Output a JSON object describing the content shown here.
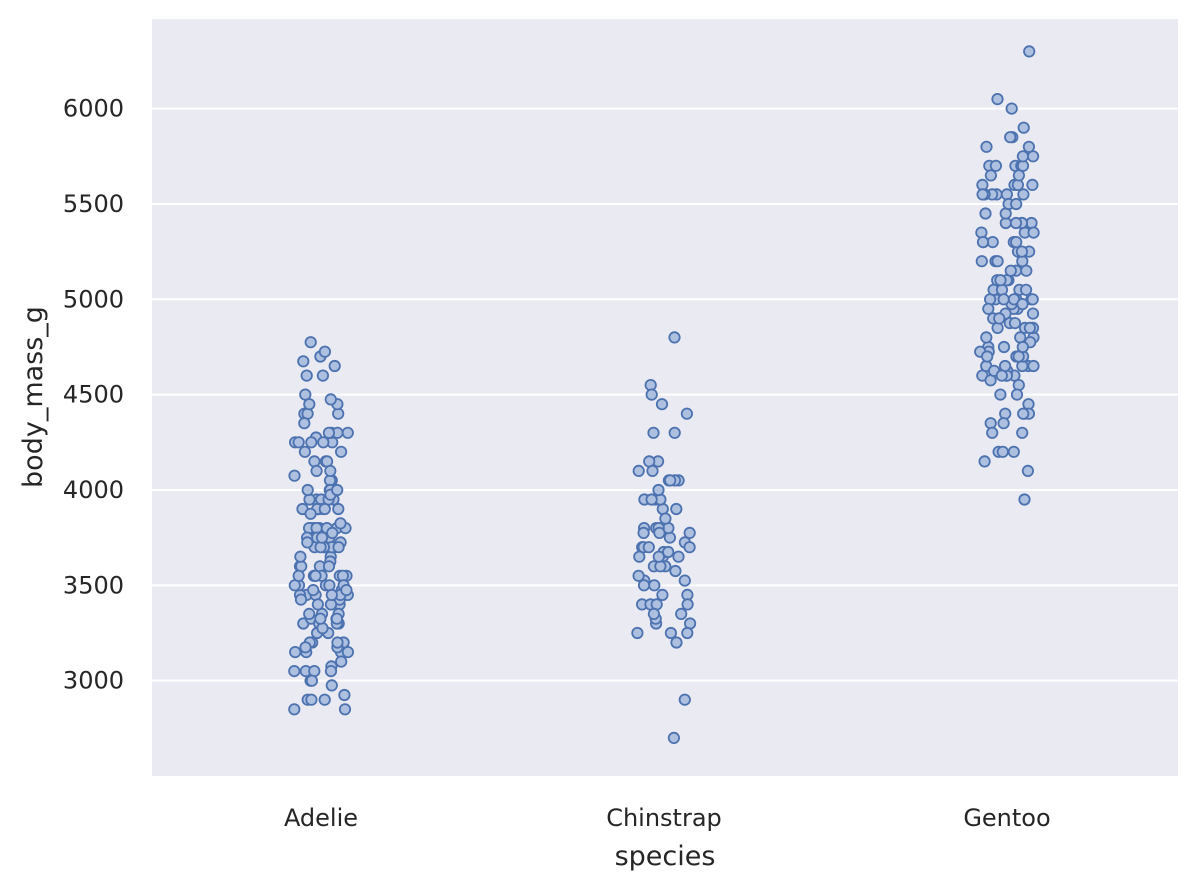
{
  "chart_data": {
    "type": "scatter",
    "title": "",
    "xlabel": "species",
    "ylabel": "body_mass_g",
    "categories": [
      "Adelie",
      "Chinstrap",
      "Gentoo"
    ],
    "yticks": [
      3000,
      3500,
      4000,
      4500,
      5000,
      5500,
      6000
    ],
    "ytick_labels": [
      "3000",
      "3500",
      "4000",
      "4500",
      "5000",
      "5500",
      "6000"
    ],
    "ylim": [
      2500,
      6470
    ],
    "grid": true,
    "legend": "none",
    "colors": {
      "background": "#eaeaf2",
      "grid": "#ffffff",
      "marker_edge": "#4c72b0",
      "marker_fill": "#aec0e0"
    },
    "series": [
      {
        "category": "Adelie",
        "values": [
          3750,
          3800,
          3250,
          3450,
          3650,
          3625,
          4675,
          3475,
          4250,
          3300,
          3700,
          3200,
          3800,
          4400,
          3700,
          3450,
          4500,
          3325,
          4200,
          3400,
          3600,
          3800,
          3950,
          3800,
          3800,
          3550,
          3200,
          3150,
          3950,
          3250,
          3900,
          3300,
          3900,
          3325,
          4150,
          3950,
          3550,
          3300,
          4650,
          3150,
          3900,
          3100,
          4400,
          3000,
          4600,
          3425,
          2975,
          3450,
          4150,
          3500,
          4300,
          3450,
          4050,
          2900,
          3700,
          3550,
          3800,
          2850,
          3750,
          3150,
          4400,
          3600,
          4050,
          2850,
          3950,
          3350,
          4100,
          3050,
          4450,
          3600,
          3900,
          3550,
          4150,
          3700,
          4250,
          3700,
          3900,
          3550,
          4000,
          3200,
          4700,
          3800,
          4200,
          3350,
          3550,
          3800,
          3500,
          3950,
          3600,
          3550,
          4300,
          3400,
          4450,
          3300,
          4300,
          3700,
          4350,
          2900,
          4100,
          3725,
          4725,
          3075,
          4250,
          2925,
          3550,
          3750,
          3900,
          3175,
          4775,
          3825,
          4600,
          3200,
          4275,
          3900,
          4075,
          2900,
          3775,
          3350,
          3325,
          3150,
          3500,
          3450,
          3875,
          3050,
          4000,
          3275,
          4300,
          3050,
          4000,
          3325,
          3500,
          3500,
          4475,
          3425,
          3900,
          3175,
          3975,
          3400,
          4250,
          3400,
          3475,
          3050,
          3725,
          3000,
          3650,
          4250,
          3475,
          3450,
          3750,
          3700,
          4000
        ]
      },
      {
        "category": "Chinstrap",
        "values": [
          3500,
          3900,
          3650,
          3525,
          3725,
          3950,
          3250,
          3750,
          4150,
          3700,
          3800,
          3775,
          3700,
          4050,
          3575,
          4050,
          3300,
          3700,
          3450,
          4400,
          3600,
          3400,
          2900,
          3800,
          3300,
          4150,
          3400,
          3800,
          3700,
          4550,
          3200,
          4300,
          3350,
          4100,
          3600,
          3900,
          3850,
          4800,
          2700,
          4500,
          3950,
          3650,
          3550,
          3500,
          3675,
          4450,
          3400,
          4300,
          3250,
          3675,
          3325,
          3950,
          3600,
          4050,
          3350,
          3450,
          3250,
          4050,
          3800,
          3525,
          3950,
          3650,
          3650,
          4000,
          3400,
          3775,
          4100,
          3775
        ]
      },
      {
        "category": "Gentoo",
        "values": [
          4500,
          5700,
          4450,
          5700,
          5400,
          4550,
          4800,
          5200,
          4400,
          5150,
          4650,
          5550,
          4650,
          5850,
          4200,
          5850,
          4150,
          6300,
          4800,
          5350,
          5700,
          5000,
          4400,
          5050,
          5000,
          5100,
          4100,
          5650,
          4600,
          5550,
          5250,
          4700,
          5050,
          6050,
          5150,
          5400,
          4950,
          5250,
          4350,
          5350,
          3950,
          5700,
          4300,
          4750,
          5550,
          4900,
          4200,
          5400,
          5100,
          5300,
          4850,
          5300,
          4400,
          5000,
          4600,
          5050,
          4300,
          5550,
          4600,
          5150,
          4650,
          5900,
          4350,
          5600,
          4950,
          5100,
          4800,
          6000,
          4875,
          5400,
          4200,
          5600,
          4650,
          5700,
          4400,
          5300,
          4575,
          5300,
          4775,
          5050,
          4925,
          5600,
          4700,
          5450,
          4500,
          5500,
          4625,
          5600,
          4700,
          5200,
          4625,
          5550,
          4725,
          5050,
          4600,
          5200,
          4725,
          5450,
          4850,
          5550,
          4975,
          5000,
          4750,
          5650,
          4850,
          5750,
          4875,
          5500,
          4700,
          5750,
          4900,
          5400,
          4600,
          5800,
          4650,
          5200,
          5000,
          5800,
          4950,
          5350,
          4600,
          4750,
          5300,
          4850,
          5000,
          5000,
          4925,
          4975,
          5250,
          5100
        ]
      }
    ]
  }
}
